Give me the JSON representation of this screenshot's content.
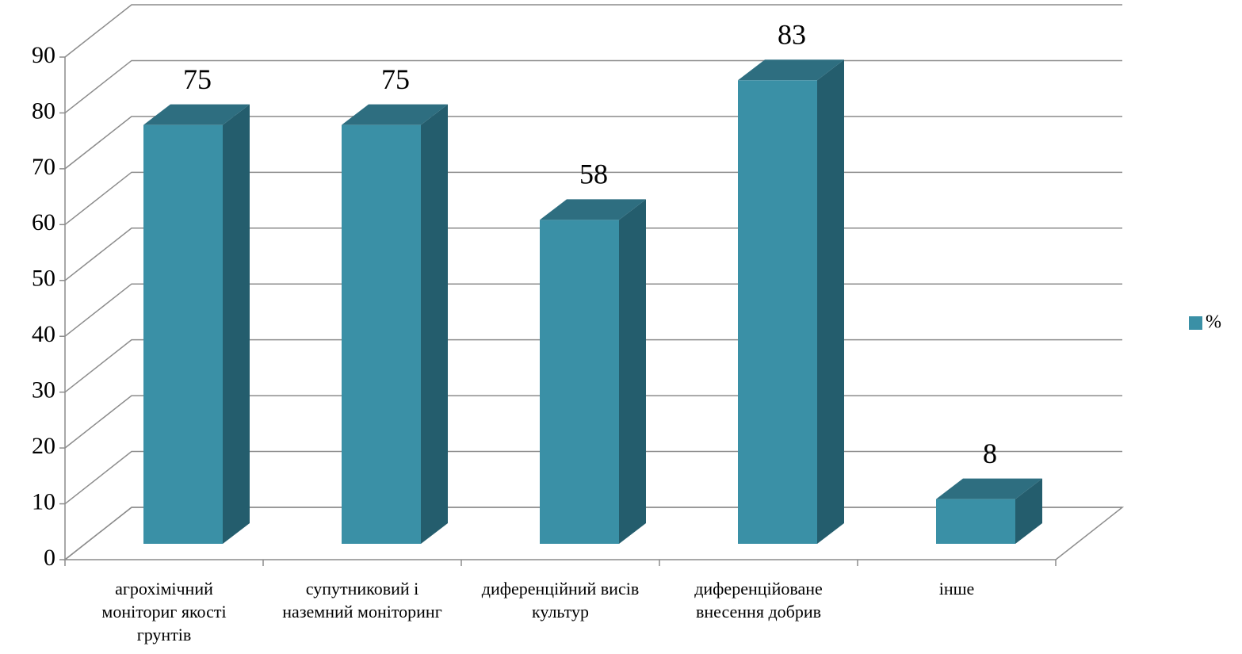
{
  "chart_data": {
    "type": "bar3d",
    "categories": [
      "агрохімічний моніториг якості грунтів",
      "супутниковий і наземний моніторинг",
      "диференційний висів культур",
      "диференційоване внесення добрив",
      "інше"
    ],
    "series": [
      {
        "name": "%",
        "color": "#3a90a6",
        "values": [
          75,
          75,
          58,
          83,
          8
        ]
      }
    ],
    "ylim": [
      0,
      90
    ],
    "yticks": [
      0,
      10,
      20,
      30,
      40,
      50,
      60,
      70,
      80,
      90
    ],
    "grid": true,
    "legend": "right"
  }
}
